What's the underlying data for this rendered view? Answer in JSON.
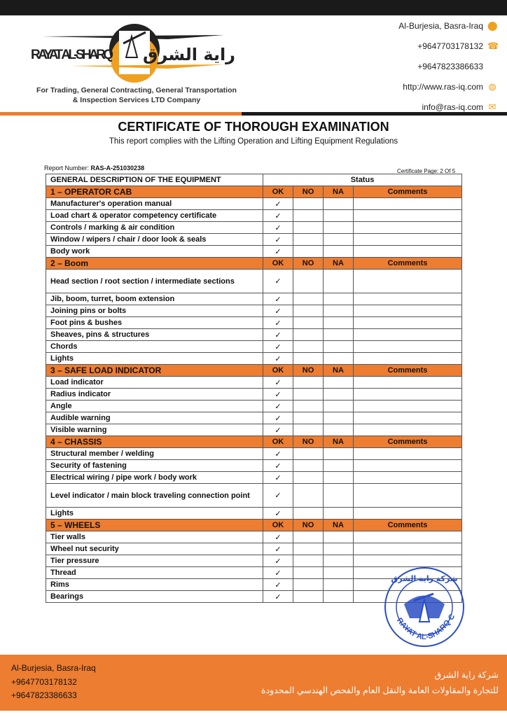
{
  "header": {
    "logo_text_en": "RAYAT AL-SHARQ",
    "logo_text_ar": "راية الشرق",
    "tagline_line1": "For Trading, General Contracting, General Transportation",
    "tagline_line2": "& Inspection Services LTD Company",
    "address": "Al-Burjesia, Basra-Iraq",
    "phone1": "+9647703178132",
    "phone2": "+9647823386633",
    "website": "http://www.ras-iq.com",
    "email": "info@ras-iq.com"
  },
  "doc": {
    "title": "CERTIFICATE OF THOROUGH EXAMINATION",
    "subtitle": "This report complies with the Lifting Operation and Lifting Equipment Regulations",
    "report_label": "Report Number: ",
    "report_number": "RAS-A-251030238",
    "cert_page": "Certificate Page: 2 Of 5"
  },
  "table": {
    "desc_header": "GENERAL DESCRIPTION OF THE EQUIPMENT",
    "status_header": "Status",
    "cols": [
      "OK",
      "NO",
      "NA",
      "Comments"
    ],
    "check": "✓",
    "sections": [
      {
        "name": "1 – OPERATOR CAB",
        "items": [
          "Manufacturer's operation manual",
          "Load chart & operator competency certificate",
          "Controls / marking & air condition",
          "Window / wipers / chair / door look & seals",
          "Body work"
        ]
      },
      {
        "name": "2 – Boom",
        "items": [
          "Head section / root section / intermediate sections",
          "Jib, boom, turret, boom extension",
          "Joining pins or bolts",
          "Foot pins & bushes",
          "Sheaves, pins & structures",
          "Chords",
          "Lights"
        ]
      },
      {
        "name": "3 – SAFE LOAD INDICATOR",
        "items": [
          "Load indicator",
          "Radius indicator",
          "Angle",
          "Audible warning",
          "Visible warning"
        ]
      },
      {
        "name": "4 – CHASSIS",
        "items": [
          "Structural member / welding",
          "Security of fastening",
          "Electrical wiring / pipe work / body work",
          "Level indicator / main block traveling connection point",
          "Lights"
        ]
      },
      {
        "name": "5 – WHEELS",
        "items": [
          "Tier walls",
          "Wheel nut security",
          "Tier pressure",
          "Thread",
          "Rims",
          "Bearings"
        ]
      }
    ]
  },
  "stamp": {
    "text_ar": "شركة راية الشرق",
    "text_en": "RAYAT AL-SHARQ Co."
  },
  "footer": {
    "address": "Al-Burjesia, Basra-Iraq",
    "phone1": "+9647703178132",
    "phone2": "+9647823386633",
    "ar_line1": "شركة راية الشرق",
    "ar_line2": "للتجارة والمقاولات العامة والنقل العام والفحص الهندسي المحدودة"
  },
  "colors": {
    "accent": "#ED7D31",
    "dark": "#1a1a1a",
    "stamp": "#2b4fc4"
  }
}
